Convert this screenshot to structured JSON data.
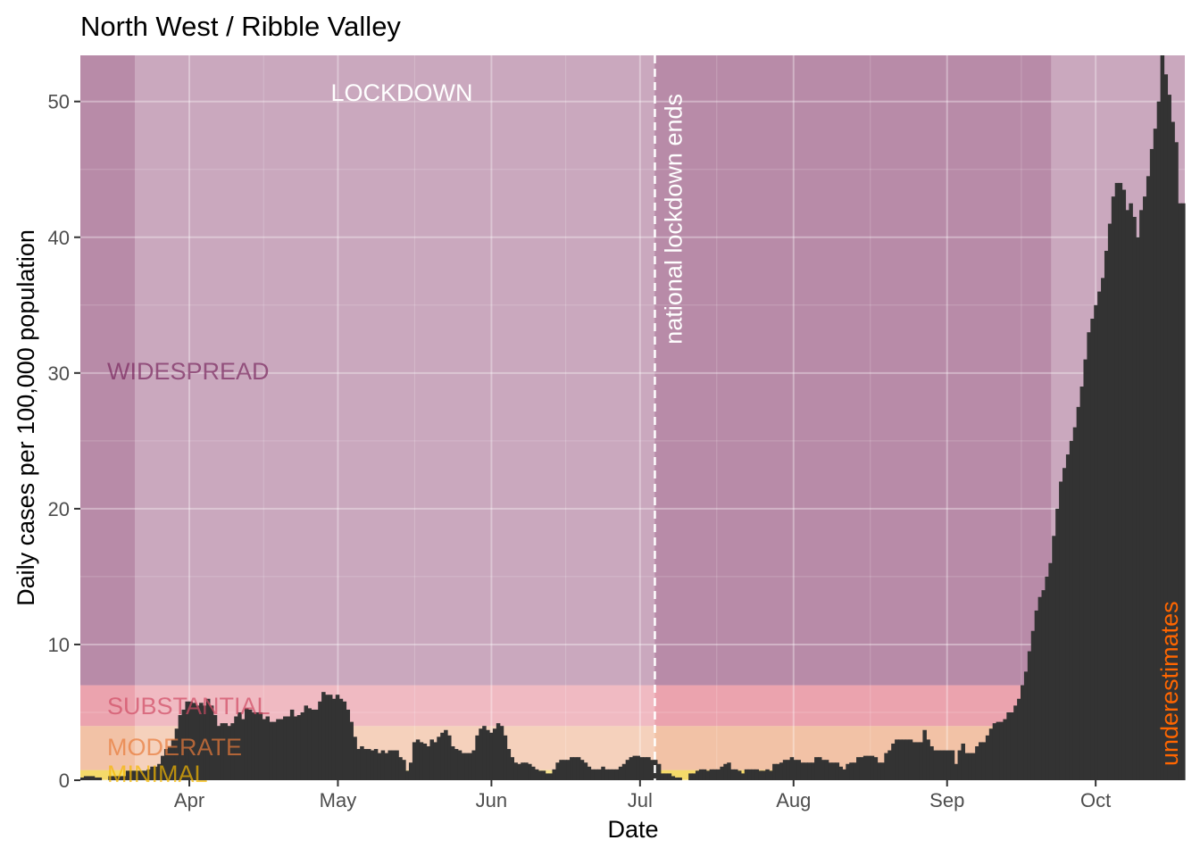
{
  "chart_data": {
    "type": "bar",
    "title": "North West / Ribble Valley",
    "xlabel": "Date",
    "ylabel": "Daily cases per 100,000 population",
    "x_range": [
      "2020-03-10",
      "2020-10-19"
    ],
    "ylim": [
      0,
      53.4
    ],
    "y_ticks": [
      0,
      10,
      20,
      30,
      40,
      50
    ],
    "x_ticks": [
      {
        "date": "2020-04-01",
        "label": "Apr"
      },
      {
        "date": "2020-05-01",
        "label": "May"
      },
      {
        "date": "2020-06-01",
        "label": "Jun"
      },
      {
        "date": "2020-07-01",
        "label": "Jul"
      },
      {
        "date": "2020-08-01",
        "label": "Aug"
      },
      {
        "date": "2020-09-01",
        "label": "Sep"
      },
      {
        "date": "2020-10-01",
        "label": "Oct"
      }
    ],
    "grid": true,
    "bar_color": "#333333",
    "panel_color": "#ebebeb",
    "bands": [
      {
        "label": "MINIMAL",
        "ymin": 0,
        "ymax": 0.75,
        "color": "#f5da6a",
        "label_color": "#f5b800"
      },
      {
        "label": "MODERATE",
        "ymin": 0.75,
        "ymax": 4,
        "color": "#f2c2a6",
        "label_color": "#e87a3a"
      },
      {
        "label": "SUBSTANTIAL",
        "ymin": 4,
        "ymax": 7,
        "color": "#eba3ae",
        "label_color": "#d04c64"
      },
      {
        "label": "WIDESPREAD",
        "ymin": 7,
        "ymax": 53.4,
        "color": "#b88ba8",
        "label_color": "#7a2a60"
      }
    ],
    "lockdown_periods": [
      {
        "label": "LOCKDOWN",
        "start": "2020-03-21",
        "end": "2020-07-04"
      },
      {
        "label": "",
        "start": "2020-09-22",
        "end": "2020-10-19"
      }
    ],
    "annotations": {
      "vline_date": "2020-07-04",
      "vline_label": "national lockdown ends",
      "lockdown_label": "LOCKDOWN",
      "underestimates_label": "underestimates",
      "underestimates_color": "#ff6600"
    },
    "values": [
      0.2,
      0.3,
      0.3,
      0.3,
      0.2,
      0.2,
      0.0,
      0.0,
      0.3,
      0.3,
      0.3,
      0.3,
      0.3,
      0.7,
      0.7,
      0.7,
      0.7,
      0.7,
      0.7,
      0.8,
      1.0,
      1.0,
      1.2,
      1.8,
      2.3,
      2.5,
      3.0,
      3.8,
      4.8,
      5.2,
      5.8,
      5.8,
      5.7,
      5.5,
      5.7,
      5.5,
      6.0,
      5.5,
      4.8,
      4.0,
      4.2,
      4.2,
      4.0,
      4.2,
      4.7,
      5.0,
      4.5,
      5.3,
      5.2,
      5.0,
      5.0,
      5.0,
      4.5,
      4.7,
      4.3,
      4.3,
      4.5,
      4.5,
      4.7,
      4.7,
      5.2,
      4.7,
      4.8,
      5.0,
      5.5,
      5.3,
      5.2,
      5.2,
      5.8,
      6.5,
      6.3,
      6.3,
      6.0,
      6.3,
      6.0,
      5.8,
      5.2,
      4.3,
      3.2,
      2.3,
      2.5,
      2.3,
      2.3,
      2.2,
      2.3,
      2.0,
      2.2,
      2.0,
      2.2,
      2.2,
      2.2,
      1.7,
      1.5,
      0.7,
      1.3,
      2.8,
      3.0,
      2.8,
      2.7,
      2.5,
      3.0,
      2.8,
      3.2,
      3.5,
      3.7,
      3.3,
      2.5,
      2.3,
      2.2,
      2.0,
      2.0,
      2.0,
      2.2,
      3.3,
      3.8,
      4.0,
      3.7,
      3.5,
      3.8,
      4.2,
      4.0,
      3.3,
      2.3,
      1.7,
      1.3,
      1.2,
      1.3,
      1.3,
      1.2,
      1.0,
      0.8,
      0.7,
      0.7,
      0.5,
      0.5,
      0.8,
      1.3,
      1.5,
      1.5,
      1.5,
      1.7,
      1.7,
      1.7,
      1.5,
      1.3,
      1.0,
      0.8,
      0.8,
      0.8,
      1.0,
      0.8,
      0.8,
      0.8,
      0.8,
      1.0,
      1.2,
      1.5,
      1.7,
      1.8,
      1.8,
      1.7,
      1.7,
      1.7,
      1.5,
      1.5,
      1.2,
      0.5,
      0.5,
      0.5,
      0.3,
      0.2,
      0.2,
      0.0,
      0.0,
      0.5,
      0.5,
      0.7,
      0.8,
      0.8,
      0.7,
      0.8,
      0.8,
      0.8,
      1.0,
      1.2,
      1.3,
      0.8,
      0.8,
      0.7,
      0.5,
      0.8,
      0.8,
      0.8,
      0.8,
      0.7,
      0.7,
      0.8,
      0.7,
      1.2,
      1.2,
      1.3,
      1.5,
      1.5,
      1.7,
      1.5,
      1.5,
      1.3,
      1.3,
      1.3,
      1.3,
      1.7,
      1.7,
      1.5,
      1.5,
      1.3,
      1.3,
      1.3,
      1.0,
      0.8,
      1.2,
      1.3,
      1.3,
      1.7,
      1.7,
      1.8,
      1.8,
      1.8,
      1.7,
      1.3,
      1.3,
      2.0,
      2.2,
      2.7,
      3.0,
      3.0,
      3.0,
      3.0,
      3.0,
      2.8,
      2.8,
      2.8,
      3.7,
      3.0,
      2.5,
      2.2,
      2.2,
      2.2,
      2.2,
      2.2,
      2.2,
      1.2,
      2.2,
      2.7,
      2.0,
      2.0,
      2.0,
      2.5,
      2.8,
      2.8,
      3.3,
      3.8,
      4.2,
      4.3,
      4.3,
      4.5,
      5.0,
      5.0,
      5.5,
      6.0,
      7.0,
      8.0,
      9.5,
      11.0,
      12.5,
      13.5,
      14.0,
      15.0,
      16.0,
      18.0,
      20.0,
      22.0,
      23.0,
      24.0,
      25.0,
      26.0,
      27.5,
      29.0,
      31.0,
      33.0,
      34.0,
      35.0,
      36.0,
      37.0,
      39.0,
      41.0,
      43.0,
      44.0,
      44.0,
      43.5,
      42.0,
      42.5,
      41.5,
      40.0,
      42.0,
      43.0,
      44.5,
      46.5,
      48.0,
      50.0,
      53.4,
      52.0,
      50.5,
      48.5,
      47.0,
      42.5,
      42.5
    ]
  }
}
